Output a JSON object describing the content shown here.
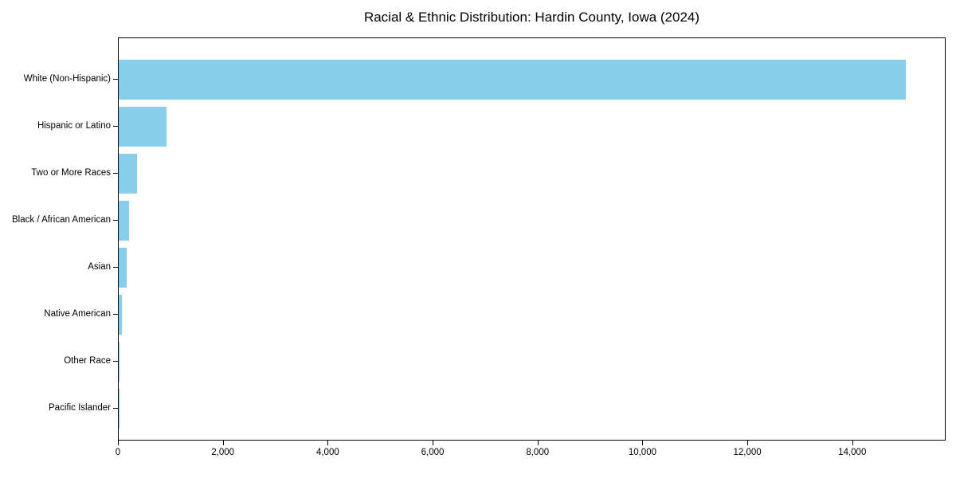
{
  "title": "Racial & Ethnic Distribution: Hardin County, Iowa (2024)",
  "colors": {
    "bar": "#87CEEB",
    "axis": "#000000",
    "background": "#ffffff"
  },
  "chart_data": {
    "type": "bar",
    "orientation": "horizontal",
    "title": "Racial & Ethnic Distribution: Hardin County, Iowa (2024)",
    "categories": [
      "White (Non-Hispanic)",
      "Hispanic or Latino",
      "Two or More Races",
      "Black / African American",
      "Asian",
      "Native American",
      "Other Race",
      "Pacific Islander"
    ],
    "values": [
      15000,
      910,
      355,
      190,
      150,
      60,
      20,
      5
    ],
    "bar_color": "#87CEEB",
    "xlabel": "",
    "ylabel": "",
    "xlim": [
      0,
      15750
    ],
    "x_ticks": [
      0,
      2000,
      4000,
      6000,
      8000,
      10000,
      12000,
      14000
    ],
    "x_tick_labels": [
      "0",
      "2,000",
      "4,000",
      "6,000",
      "8,000",
      "10,000",
      "12,000",
      "14,000"
    ],
    "grid": false,
    "legend": "none"
  }
}
